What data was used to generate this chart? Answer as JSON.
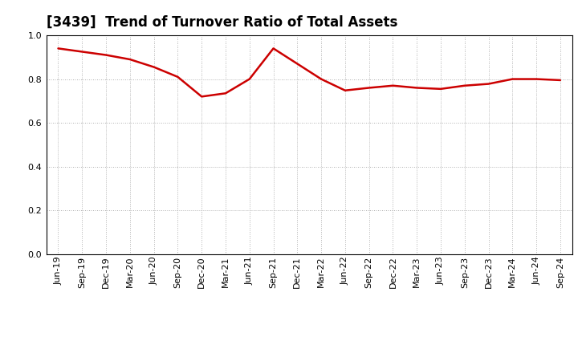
{
  "title": "[3439]  Trend of Turnover Ratio of Total Assets",
  "line_color": "#cc0000",
  "background_color": "#ffffff",
  "grid_color": "#999999",
  "ylim": [
    0.0,
    1.0
  ],
  "yticks": [
    0.0,
    0.2,
    0.4,
    0.6,
    0.8,
    1.0
  ],
  "labels": [
    "Jun-19",
    "Sep-19",
    "Dec-19",
    "Mar-20",
    "Jun-20",
    "Sep-20",
    "Dec-20",
    "Mar-21",
    "Jun-21",
    "Sep-21",
    "Dec-21",
    "Mar-22",
    "Jun-22",
    "Sep-22",
    "Dec-22",
    "Mar-23",
    "Jun-23",
    "Sep-23",
    "Dec-23",
    "Mar-24",
    "Jun-24",
    "Sep-24"
  ],
  "values": [
    0.94,
    0.925,
    0.91,
    0.89,
    0.855,
    0.81,
    0.72,
    0.735,
    0.8,
    0.94,
    0.87,
    0.8,
    0.748,
    0.76,
    0.77,
    0.76,
    0.755,
    0.77,
    0.778,
    0.8,
    0.8,
    0.795
  ],
  "figsize": [
    7.2,
    4.4
  ],
  "dpi": 100,
  "title_fontsize": 12,
  "tick_fontsize": 8,
  "linewidth": 1.8
}
